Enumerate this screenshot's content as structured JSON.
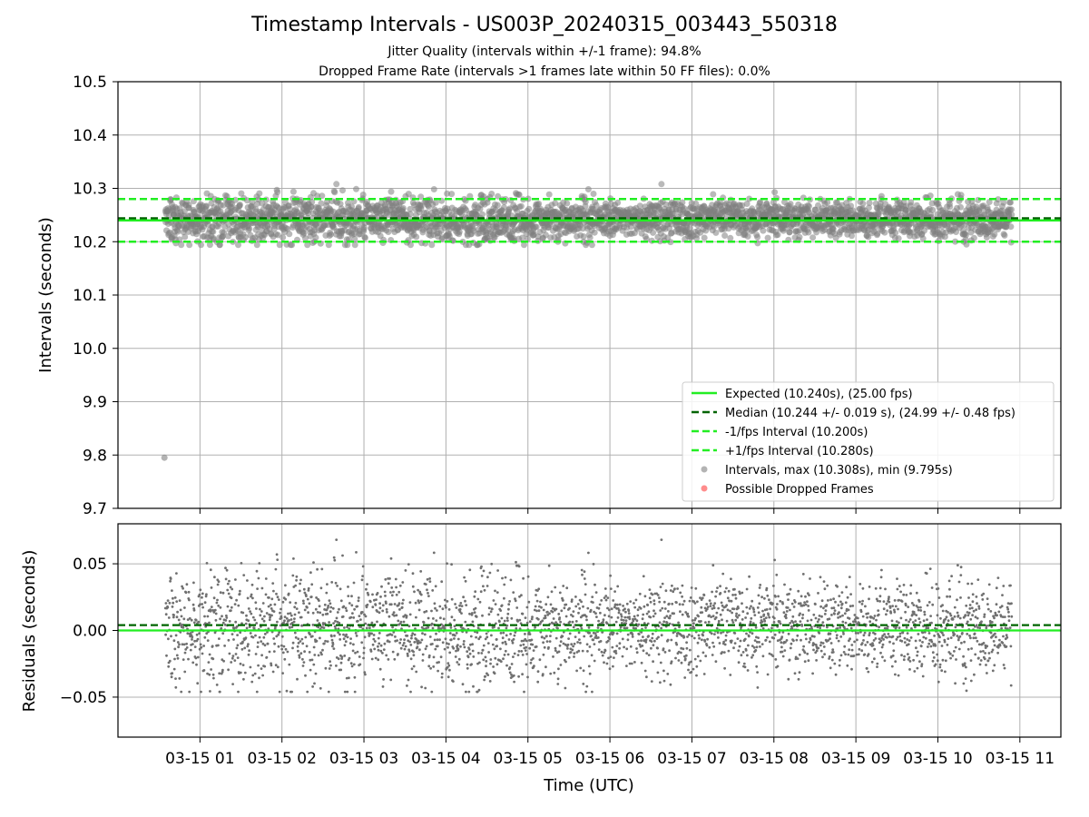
{
  "chart_data": [
    {
      "type": "scatter",
      "title": "Timestamp Intervals - US003P_20240315_003443_550318",
      "subtitle_lines": [
        "Jitter Quality (intervals within +/-1 frame): 94.8%",
        "Dropped Frame Rate (intervals >1 frames late within 50 FF files): 0.0%"
      ],
      "xlabel": "",
      "ylabel": "Intervals (seconds)",
      "ylim": [
        9.7,
        10.5
      ],
      "yticks": [
        "9.7",
        "9.8",
        "9.9",
        "10.0",
        "10.1",
        "10.2",
        "10.3",
        "10.4",
        "10.5"
      ],
      "grid": true,
      "legend_position": "lower right",
      "reference_lines": [
        {
          "name": "Expected (10.240s), (25.00 fps)",
          "y": 10.24,
          "color": "#22ee22",
          "style": "solid"
        },
        {
          "name": "Median (10.244 +/- 0.019 s), (24.99 +/- 0.48 fps)",
          "y": 10.244,
          "color": "#006400",
          "style": "dashed"
        },
        {
          "name": "-1/fps Interval (10.200s)",
          "y": 10.2,
          "color": "#22ee22",
          "style": "dashed"
        },
        {
          "name": "+1/fps Interval (10.280s)",
          "y": 10.28,
          "color": "#22ee22",
          "style": "dashed"
        }
      ],
      "series": [
        {
          "name": "Intervals, max (10.308s), min (9.795s)",
          "color": "#808080",
          "marker": "circle",
          "description": "dense scatter of ~3000 intervals between 10.19 and 10.31 s; single outlier",
          "outlier": {
            "x": "2024-03-15 00:34",
            "y": 9.795
          }
        },
        {
          "name": "Possible Dropped Frames",
          "color": "#ff4040",
          "marker": "circle",
          "points": []
        }
      ]
    },
    {
      "type": "scatter",
      "xlabel": "Time (UTC)",
      "ylabel": "Residuals (seconds)",
      "ylim": [
        -0.08,
        0.08
      ],
      "yticks": [
        "−0.05",
        "0.00",
        "0.05"
      ],
      "xticks": [
        "03-15 01",
        "03-15 02",
        "03-15 03",
        "03-15 04",
        "03-15 05",
        "03-15 06",
        "03-15 07",
        "03-15 08",
        "03-15 09",
        "03-15 10",
        "03-15 11"
      ],
      "xlim": [
        "2024-03-15 00:00",
        "2024-03-15 11:30"
      ],
      "reference_lines": [
        {
          "y": 0.0,
          "color": "#22ee22",
          "style": "solid"
        },
        {
          "y": 0.004,
          "color": "#006400",
          "style": "dashed"
        }
      ]
    }
  ]
}
